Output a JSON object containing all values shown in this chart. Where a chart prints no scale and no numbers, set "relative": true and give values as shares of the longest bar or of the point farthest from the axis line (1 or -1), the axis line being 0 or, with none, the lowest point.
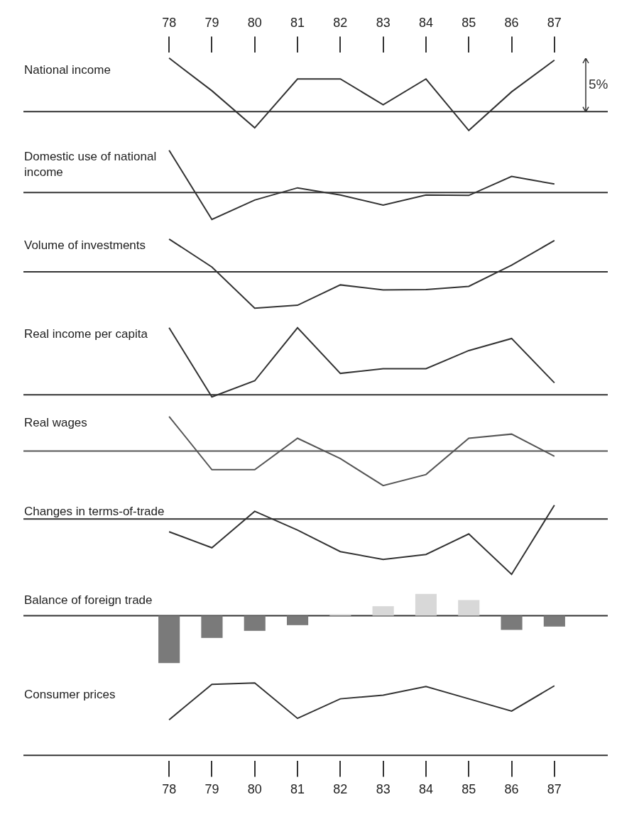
{
  "chart_data": [
    {
      "type": "line",
      "title": "National income",
      "categories": [
        "78",
        "79",
        "80",
        "81",
        "82",
        "83",
        "84",
        "85",
        "86",
        "87"
      ],
      "values": [
        1,
        0.39,
        -0.3,
        0.61,
        0.61,
        0.13,
        0.61,
        -0.35,
        0.37,
        0.96
      ],
      "color": "#333333",
      "relative": true,
      "tick_labels": "x",
      "annotations": [
        "5%"
      ]
    },
    {
      "type": "line",
      "title": "Domestic use of national income",
      "categories": [
        "78",
        "79",
        "80",
        "81",
        "82",
        "83",
        "84",
        "85",
        "86",
        "87"
      ],
      "values": [
        1,
        -0.64,
        -0.18,
        0.11,
        -0.06,
        -0.3,
        -0.06,
        -0.07,
        0.38,
        0.2
      ],
      "color": "#333333",
      "relative": true,
      "tick_labels": false
    },
    {
      "type": "line",
      "title": "Volume of investments",
      "categories": [
        "78",
        "79",
        "80",
        "81",
        "82",
        "83",
        "84",
        "85",
        "86",
        "87"
      ],
      "values": [
        0.9,
        0.13,
        -1,
        -0.92,
        -0.36,
        -0.5,
        -0.49,
        -0.4,
        0.18,
        0.86
      ],
      "color": "#333333",
      "relative": true,
      "tick_labels": false
    },
    {
      "type": "line",
      "title": "Real income per capita",
      "categories": [
        "78",
        "79",
        "80",
        "81",
        "82",
        "83",
        "84",
        "85",
        "86",
        "87"
      ],
      "values": [
        1,
        -0.03,
        0.21,
        1,
        0.32,
        0.39,
        0.39,
        0.66,
        0.84,
        0.18
      ],
      "color": "#333333",
      "relative": true,
      "tick_labels": false
    },
    {
      "type": "line",
      "title": "Real wages",
      "categories": [
        "78",
        "79",
        "80",
        "81",
        "82",
        "83",
        "84",
        "85",
        "86",
        "87"
      ],
      "values": [
        1,
        -0.54,
        -0.54,
        0.37,
        -0.22,
        -1,
        -0.68,
        0.37,
        0.49,
        -0.15
      ],
      "color": "#555555",
      "relative": true,
      "tick_labels": false
    },
    {
      "type": "line",
      "title": "Changes in terms-of-trade",
      "categories": [
        "78",
        "79",
        "80",
        "81",
        "82",
        "83",
        "84",
        "85",
        "86",
        "87"
      ],
      "values": [
        -0.23,
        -0.52,
        0.14,
        -0.2,
        -0.59,
        -0.73,
        -0.64,
        -0.27,
        -1,
        0.25
      ],
      "color": "#333333",
      "relative": true,
      "tick_labels": false
    },
    {
      "type": "bar",
      "title": "Balance of foreign trade",
      "categories": [
        "78",
        "79",
        "80",
        "81",
        "82",
        "83",
        "84",
        "85",
        "86",
        "87"
      ],
      "values": [
        -1,
        -0.47,
        -0.32,
        -0.2,
        0.03,
        0.2,
        0.46,
        0.33,
        -0.3,
        -0.23
      ],
      "colors": [
        "#7a7a7a",
        "#7a7a7a",
        "#7a7a7a",
        "#7a7a7a",
        "#d8d8d8",
        "#d8d8d8",
        "#d8d8d8",
        "#d8d8d8",
        "#7a7a7a",
        "#7a7a7a"
      ],
      "color": "#333333",
      "relative": true,
      "tick_labels": false
    },
    {
      "type": "line",
      "title": "Consumer prices",
      "categories": [
        "78",
        "79",
        "80",
        "81",
        "82",
        "83",
        "84",
        "85",
        "86",
        "87"
      ],
      "values": [
        0.49,
        0.98,
        1,
        0.51,
        0.78,
        0.83,
        0.95,
        0.78,
        0.61,
        0.96
      ],
      "color": "#333333",
      "relative": true,
      "tick_labels": "x"
    }
  ]
}
